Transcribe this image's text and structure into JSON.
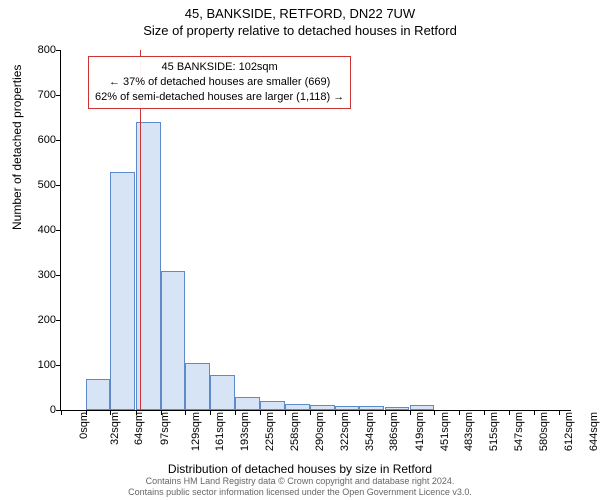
{
  "titles": {
    "main": "45, BANKSIDE, RETFORD, DN22 7UW",
    "sub": "Size of property relative to detached houses in Retford"
  },
  "chart": {
    "type": "histogram",
    "bar_fill": "#d6e4f5",
    "bar_stroke": "#5c8acb",
    "marker_line_color": "#cc3333",
    "background": "#ffffff",
    "xlim": [
      0,
      660
    ],
    "ylim": [
      0,
      800
    ],
    "ytick_step": 100,
    "yticks": [
      0,
      100,
      200,
      300,
      400,
      500,
      600,
      700,
      800
    ],
    "xticks": [
      0,
      32,
      64,
      97,
      129,
      161,
      193,
      225,
      258,
      290,
      322,
      354,
      386,
      419,
      451,
      483,
      515,
      547,
      580,
      612,
      644
    ],
    "xtick_labels": [
      "0sqm",
      "32sqm",
      "64sqm",
      "97sqm",
      "129sqm",
      "161sqm",
      "193sqm",
      "225sqm",
      "258sqm",
      "290sqm",
      "322sqm",
      "354sqm",
      "386sqm",
      "419sqm",
      "451sqm",
      "483sqm",
      "515sqm",
      "547sqm",
      "580sqm",
      "612sqm",
      "644sqm"
    ],
    "bar_width_data": 32,
    "bars": [
      {
        "x": 0,
        "y": 0
      },
      {
        "x": 32,
        "y": 68
      },
      {
        "x": 64,
        "y": 530
      },
      {
        "x": 97,
        "y": 640
      },
      {
        "x": 129,
        "y": 310
      },
      {
        "x": 161,
        "y": 105
      },
      {
        "x": 193,
        "y": 78
      },
      {
        "x": 225,
        "y": 30
      },
      {
        "x": 258,
        "y": 20
      },
      {
        "x": 290,
        "y": 14
      },
      {
        "x": 322,
        "y": 12
      },
      {
        "x": 354,
        "y": 9
      },
      {
        "x": 386,
        "y": 8
      },
      {
        "x": 419,
        "y": 6
      },
      {
        "x": 451,
        "y": 12
      }
    ],
    "marker_x": 102,
    "ylabel": "Number of detached properties",
    "xlabel": "Distribution of detached houses by size in Retford"
  },
  "callout": {
    "line1": "45 BANKSIDE: 102sqm",
    "line2": "← 37% of detached houses are smaller (669)",
    "line3": "62% of semi-detached houses are larger (1,118) →"
  },
  "footer": {
    "line1": "Contains HM Land Registry data © Crown copyright and database right 2024.",
    "line2": "Contains public sector information licensed under the Open Government Licence v3.0."
  },
  "fonts": {
    "title_size": 13,
    "tick_size": 11,
    "label_size": 12,
    "callout_size": 11,
    "footer_size": 9
  }
}
